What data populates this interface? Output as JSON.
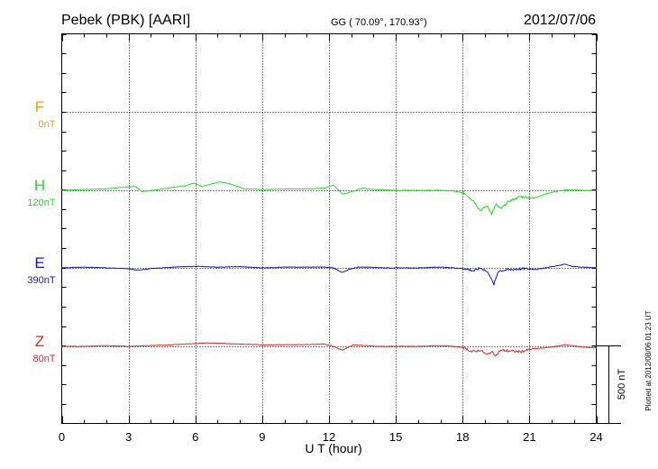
{
  "header": {
    "station": "Pebek (PBK)  [AARI]",
    "coords": "GG ( 70.09°, 170.93°)",
    "date": "2012/07/06"
  },
  "side_note": "Plotted at 2012/08/06 01:23 UT",
  "chart_data": {
    "type": "line",
    "xlabel": "U T (hour)",
    "xlim": [
      0,
      24
    ],
    "x_ticks": [
      "0",
      "3",
      "6",
      "9",
      "12",
      "15",
      "18",
      "21",
      "24"
    ],
    "scale_bar_label": "500 nT",
    "scale_bar_nT": 500,
    "series": [
      {
        "name": "F",
        "offset_label": "0nT",
        "color": "#f5a000",
        "values": []
      },
      {
        "name": "H",
        "offset_label": "120nT",
        "color": "#22dd22",
        "x": [
          0,
          1,
          2,
          2.8,
          3.3,
          3.6,
          4.2,
          5,
          5.6,
          5.9,
          6.3,
          6.7,
          7.1,
          7.6,
          8.2,
          9,
          10,
          11,
          11.8,
          12.2,
          12.6,
          13,
          13.5,
          14,
          15,
          16,
          17,
          17.6,
          18.1,
          18.5,
          18.8,
          19.1,
          19.3,
          19.5,
          19.7,
          20.1,
          20.6,
          21.2,
          21.8,
          22.3,
          22.8,
          23.3,
          24
        ],
        "values": [
          0,
          5,
          10,
          20,
          25,
          -8,
          2,
          20,
          30,
          45,
          25,
          40,
          55,
          40,
          10,
          5,
          8,
          10,
          15,
          35,
          -25,
          -10,
          15,
          5,
          0,
          0,
          0,
          -5,
          -20,
          -70,
          -130,
          -100,
          -150,
          -90,
          -120,
          -70,
          -40,
          -50,
          -20,
          -5,
          5,
          0,
          -2
        ]
      },
      {
        "name": "E",
        "offset_label": "390nT",
        "color": "#1111dd",
        "x": [
          0,
          1,
          2,
          3,
          3.4,
          4,
          5,
          6,
          7,
          8,
          9,
          10,
          11,
          11.8,
          12.2,
          12.6,
          12.9,
          13.3,
          13.8,
          14.5,
          15,
          16,
          17,
          17.6,
          18.1,
          18.5,
          18.8,
          19,
          19.2,
          19.4,
          19.6,
          19.9,
          20.3,
          20.8,
          21.3,
          21.9,
          22.3,
          22.6,
          22.9,
          23.4,
          24
        ],
        "values": [
          0,
          5,
          0,
          -5,
          -15,
          -5,
          5,
          10,
          5,
          8,
          0,
          5,
          5,
          5,
          0,
          -30,
          -10,
          5,
          5,
          0,
          0,
          0,
          5,
          0,
          -5,
          -20,
          0,
          -15,
          -40,
          -110,
          -20,
          -15,
          -10,
          -5,
          -10,
          5,
          15,
          25,
          10,
          5,
          0
        ]
      },
      {
        "name": "Z",
        "offset_label": "80nT",
        "color": "#ee2222",
        "x": [
          0,
          1,
          2,
          3,
          4,
          5,
          6,
          6.5,
          7,
          8,
          9,
          10,
          11,
          11.8,
          12.2,
          12.6,
          12.8,
          13.1,
          13.6,
          14.2,
          15,
          16,
          17,
          17.6,
          18.1,
          18.4,
          18.8,
          19.1,
          19.3,
          19.5,
          19.7,
          20.1,
          20.6,
          21.2,
          21.7,
          22.2,
          22.6,
          22.9,
          23.4,
          24
        ],
        "values": [
          0,
          0,
          5,
          0,
          5,
          10,
          18,
          22,
          20,
          15,
          10,
          10,
          12,
          15,
          0,
          -25,
          -10,
          10,
          5,
          0,
          0,
          0,
          5,
          0,
          -10,
          -35,
          -25,
          -55,
          -35,
          -60,
          -25,
          -30,
          -35,
          -15,
          -10,
          0,
          10,
          5,
          -5,
          -10
        ]
      }
    ]
  }
}
